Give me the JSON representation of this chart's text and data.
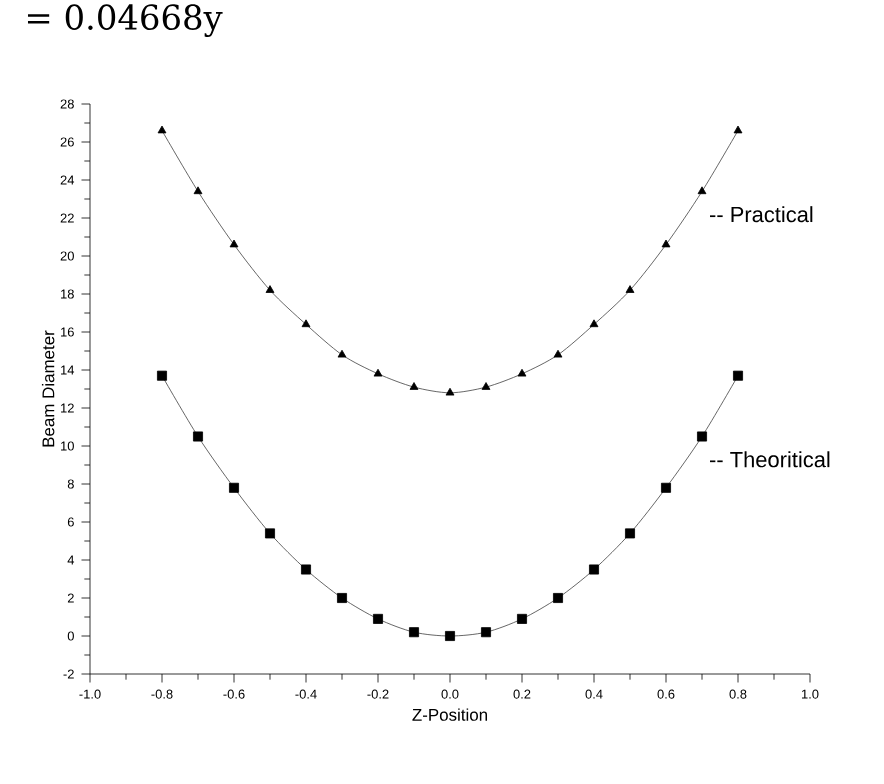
{
  "chart_data": {
    "type": "line",
    "xlabel": "Z-Position",
    "ylabel": "Beam Diameter",
    "annotations": [
      "= 0.04668y"
    ],
    "x": [
      -0.8,
      -0.7,
      -0.6,
      -0.5,
      -0.4,
      -0.3,
      -0.2,
      -0.1,
      0.0,
      0.1,
      0.2,
      0.3,
      0.4,
      0.5,
      0.6,
      0.7,
      0.8
    ],
    "series": [
      {
        "name": "-- Practical",
        "color": "#000000",
        "marker": "triangle",
        "values": [
          26.6,
          23.4,
          20.6,
          18.2,
          16.4,
          14.8,
          13.8,
          13.1,
          12.8,
          13.1,
          13.8,
          14.8,
          16.4,
          18.2,
          20.6,
          23.4,
          26.6
        ]
      },
      {
        "name": "-- Theoritical",
        "color": "#000000",
        "marker": "square",
        "values": [
          13.7,
          10.5,
          7.8,
          5.4,
          3.5,
          2.0,
          0.9,
          0.2,
          0.0,
          0.2,
          0.9,
          2.0,
          3.5,
          5.4,
          7.8,
          10.5,
          13.7
        ]
      }
    ],
    "xlim": [
      -1.0,
      1.0
    ],
    "xticks": [
      {
        "value": -1.0,
        "label": "-1.0"
      },
      -0.8,
      -0.6,
      -0.4,
      -0.2,
      {
        "value": 0.0,
        "label": "0.0"
      },
      0.2,
      0.4,
      0.6,
      0.8,
      {
        "value": 1.0,
        "label": "1.0"
      }
    ],
    "ylim": [
      -2,
      28
    ],
    "yticks": [
      -2,
      0,
      2,
      4,
      6,
      8,
      10,
      12,
      14,
      16,
      18,
      20,
      22,
      24,
      26,
      28
    ],
    "grid": false,
    "legend": false
  }
}
